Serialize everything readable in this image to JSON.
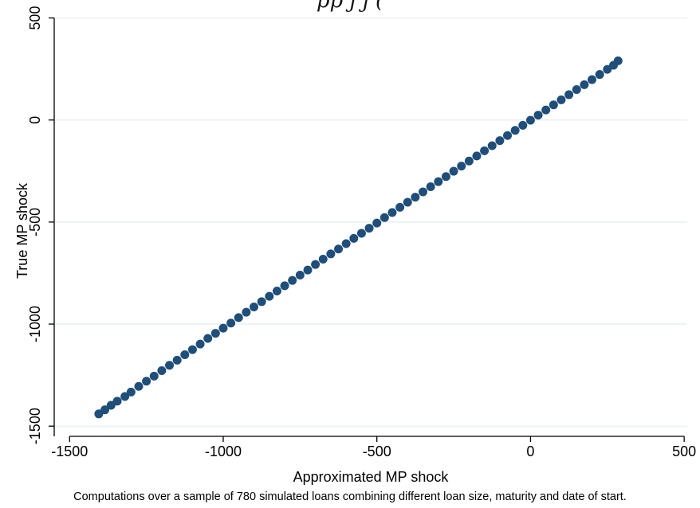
{
  "page": {
    "top_title_fragment": "pp                               j       j          (",
    "note": "Computations over a sample of 780 simulated loans combining different loan size, maturity and date of start."
  },
  "colors": {
    "marker": "#1f4e79",
    "grid": "#e3ecef",
    "axis": "#000000"
  },
  "chart_data": {
    "type": "scatter",
    "title": "",
    "xlabel": "Approximated MP shock",
    "ylabel": "True MP shock",
    "xlim": [
      -1550,
      510
    ],
    "ylim": [
      -1550,
      510
    ],
    "xticks": [
      -1500,
      -1000,
      -500,
      0,
      500
    ],
    "yticks": [
      -1500,
      -1000,
      -500,
      0,
      500
    ],
    "grid": true,
    "series": [
      {
        "marker": "circle",
        "points": [
          [
            -1405,
            -1440
          ],
          [
            -1385,
            -1420
          ],
          [
            -1365,
            -1398
          ],
          [
            -1345,
            -1378
          ],
          [
            -1320,
            -1355
          ],
          [
            -1300,
            -1333
          ],
          [
            -1275,
            -1305
          ],
          [
            -1250,
            -1280
          ],
          [
            -1225,
            -1255
          ],
          [
            -1200,
            -1228
          ],
          [
            -1175,
            -1202
          ],
          [
            -1150,
            -1177
          ],
          [
            -1125,
            -1150
          ],
          [
            -1100,
            -1125
          ],
          [
            -1075,
            -1098
          ],
          [
            -1050,
            -1070
          ],
          [
            -1025,
            -1045
          ],
          [
            -1000,
            -1020
          ],
          [
            -975,
            -995
          ],
          [
            -950,
            -968
          ],
          [
            -925,
            -942
          ],
          [
            -900,
            -916
          ],
          [
            -875,
            -890
          ],
          [
            -850,
            -864
          ],
          [
            -825,
            -838
          ],
          [
            -800,
            -812
          ],
          [
            -775,
            -786
          ],
          [
            -750,
            -760
          ],
          [
            -725,
            -735
          ],
          [
            -700,
            -708
          ],
          [
            -675,
            -682
          ],
          [
            -650,
            -656
          ],
          [
            -625,
            -632
          ],
          [
            -600,
            -606
          ],
          [
            -575,
            -580
          ],
          [
            -550,
            -555
          ],
          [
            -525,
            -530
          ],
          [
            -500,
            -505
          ],
          [
            -475,
            -478
          ],
          [
            -450,
            -453
          ],
          [
            -425,
            -428
          ],
          [
            -400,
            -403
          ],
          [
            -375,
            -378
          ],
          [
            -350,
            -352
          ],
          [
            -325,
            -327
          ],
          [
            -300,
            -302
          ],
          [
            -275,
            -277
          ],
          [
            -250,
            -251
          ],
          [
            -225,
            -226
          ],
          [
            -200,
            -201
          ],
          [
            -175,
            -176
          ],
          [
            -150,
            -151
          ],
          [
            -125,
            -126
          ],
          [
            -100,
            -101
          ],
          [
            -75,
            -76
          ],
          [
            -50,
            -51
          ],
          [
            -25,
            -26
          ],
          [
            0,
            -1
          ],
          [
            25,
            24
          ],
          [
            50,
            49
          ],
          [
            75,
            74
          ],
          [
            100,
            99
          ],
          [
            125,
            124
          ],
          [
            150,
            149
          ],
          [
            175,
            173
          ],
          [
            200,
            198
          ],
          [
            225,
            223
          ],
          [
            250,
            248
          ],
          [
            270,
            268
          ],
          [
            285,
            290
          ]
        ]
      }
    ]
  }
}
